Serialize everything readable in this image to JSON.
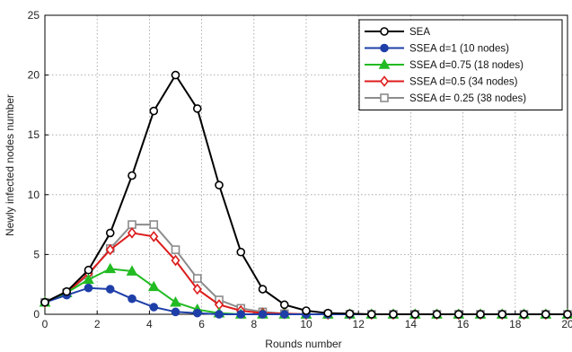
{
  "chart_data": {
    "type": "line",
    "xlabel": "Rounds number",
    "ylabel": "Newly infected nodes number",
    "xlim": [
      0,
      20
    ],
    "ylim": [
      0,
      25
    ],
    "x_ticks": [
      0,
      2,
      4,
      6,
      8,
      10,
      12,
      14,
      16,
      18,
      20
    ],
    "y_ticks": [
      0,
      5,
      10,
      15,
      20,
      25
    ],
    "grid": "on",
    "legend_position": "top-right",
    "x": [
      0,
      0.833,
      1.667,
      2.5,
      3.333,
      4.167,
      5,
      5.833,
      6.667,
      7.5,
      8.333,
      9.167,
      10,
      10.833,
      11.667,
      12.5,
      13.333,
      14.167,
      15,
      15.833,
      16.667,
      17.5,
      18.333,
      19.167,
      20
    ],
    "series": [
      {
        "name": "SEA",
        "color": "#000000",
        "marker": "circle",
        "values": [
          1.0,
          1.9,
          3.7,
          6.8,
          11.6,
          17.0,
          20.0,
          17.2,
          10.8,
          5.2,
          2.1,
          0.8,
          0.3,
          0.1,
          0.05,
          0,
          0,
          0,
          0,
          0,
          0,
          0,
          0,
          0,
          0
        ]
      },
      {
        "name": "SSEA d=1 (10 nodes)",
        "color": "#1f3fa8",
        "marker": "circle",
        "values": [
          1.0,
          1.6,
          2.2,
          2.1,
          1.3,
          0.6,
          0.2,
          0.1,
          0,
          0,
          0,
          0,
          0,
          0,
          0,
          0,
          0,
          0,
          0,
          0,
          0,
          0,
          0,
          0,
          0
        ]
      },
      {
        "name": "SSEA d=0.75 (18 nodes)",
        "color": "#22bb22",
        "marker": "triangle",
        "values": [
          1.0,
          1.8,
          2.9,
          3.8,
          3.6,
          2.3,
          1.0,
          0.4,
          0.1,
          0,
          0,
          0,
          0,
          0,
          0,
          0,
          0,
          0,
          0,
          0,
          0,
          0,
          0,
          0,
          0
        ]
      },
      {
        "name": "SSEA d=0.5 (34 nodes)",
        "color": "#dd1c1c",
        "marker": "diamond",
        "values": [
          1.0,
          1.8,
          3.4,
          5.4,
          6.8,
          6.5,
          4.5,
          2.1,
          0.8,
          0.3,
          0.1,
          0.05,
          0,
          0,
          0,
          0,
          0,
          0,
          0,
          0,
          0,
          0,
          0,
          0,
          0
        ]
      },
      {
        "name": "SSEA d= 0.25 (38 nodes)",
        "color": "#8c8c8c",
        "marker": "square",
        "values": [
          1.0,
          1.8,
          3.3,
          5.5,
          7.5,
          7.5,
          5.4,
          3.0,
          1.2,
          0.5,
          0.2,
          0.05,
          0,
          0,
          0,
          0,
          0,
          0,
          0,
          0,
          0,
          0,
          0,
          0,
          0
        ]
      }
    ]
  }
}
